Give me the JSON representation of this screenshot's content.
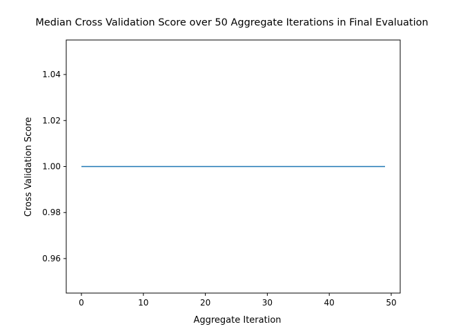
{
  "chart_data": {
    "type": "line",
    "title": "Median Cross Validation Score over 50 Aggregate Iterations in Final Evaluation",
    "xlabel": "Aggregate Iteration",
    "ylabel": "Cross Validation Score",
    "xlim": [
      -2.45,
      51.45
    ],
    "ylim": [
      0.945,
      1.055
    ],
    "x_ticks": [
      0,
      10,
      20,
      30,
      40,
      50
    ],
    "x_tick_labels": [
      "0",
      "10",
      "20",
      "30",
      "40",
      "50"
    ],
    "y_ticks": [
      0.96,
      0.98,
      1.0,
      1.02,
      1.04
    ],
    "y_tick_labels": [
      "0.96",
      "0.98",
      "1.00",
      "1.02",
      "1.04"
    ],
    "grid": false,
    "series": [
      {
        "color": "#1f77b4",
        "x": [
          0,
          49
        ],
        "y": [
          1.0,
          1.0
        ]
      }
    ]
  }
}
